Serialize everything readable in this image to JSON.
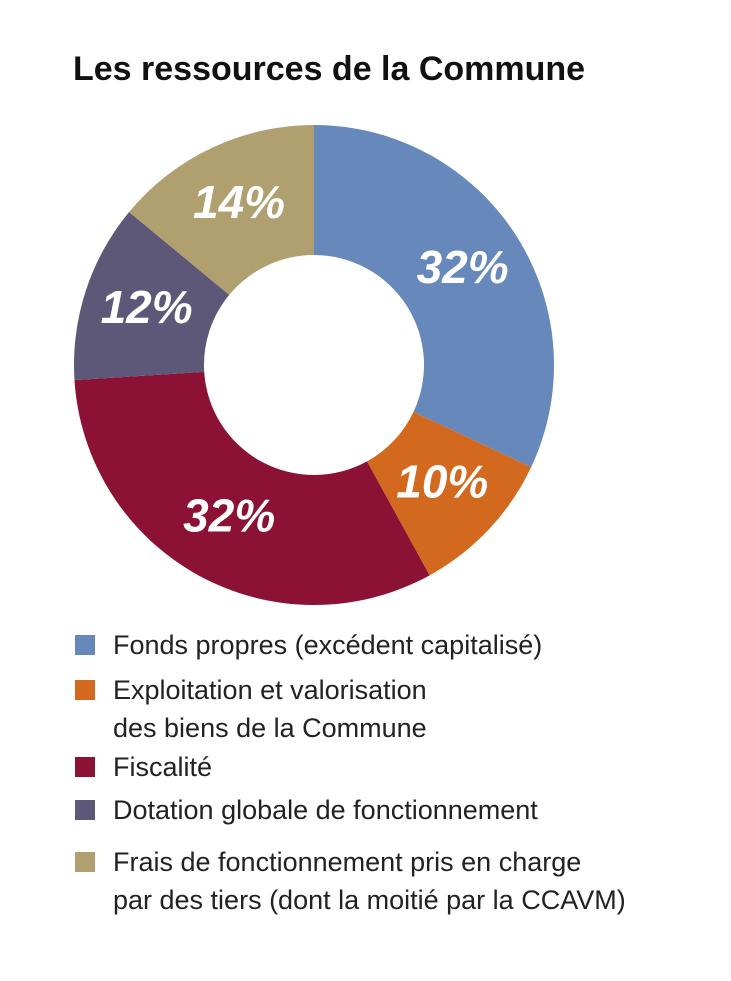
{
  "chart_data": {
    "type": "pie",
    "title": "Les ressources de la Commune",
    "categories": [
      "Fonds propres (excédent capitalisé)",
      "Exploitation et valorisation\ndes biens de la Commune",
      "Fiscalité",
      "Dotation globale de fonctionnement",
      "Frais de fonctionnement pris en charge\npar des tiers (dont la moitié par la CCAVM)"
    ],
    "values": [
      32,
      10,
      32,
      12,
      14
    ],
    "value_labels": [
      "32%",
      "10%",
      "32%",
      "12%",
      "14%"
    ],
    "colors": [
      "#6688bb",
      "#d2691e",
      "#8b1234",
      "#5e5878",
      "#b0a070"
    ]
  }
}
